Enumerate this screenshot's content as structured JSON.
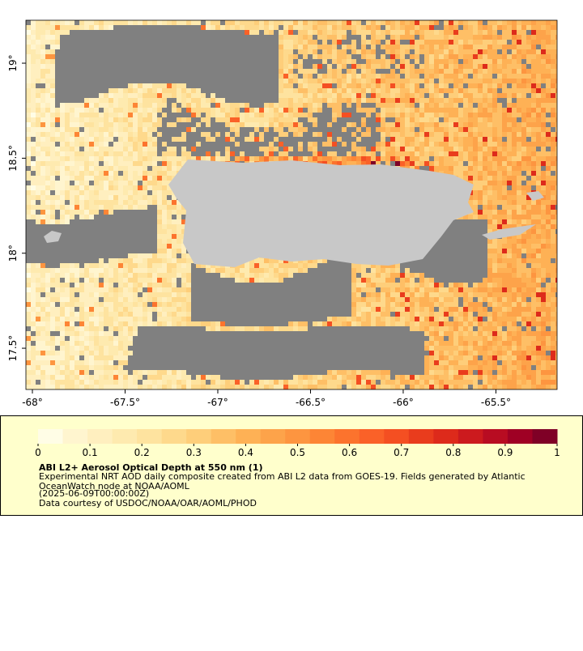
{
  "map": {
    "xlim": [
      -68.035,
      -65.17
    ],
    "ylim": [
      17.283,
      19.226
    ],
    "xticks": [
      {
        "value": -68,
        "label": "-68°"
      },
      {
        "value": -67.5,
        "label": "-67.5°"
      },
      {
        "value": -67,
        "label": "-67°"
      },
      {
        "value": -66.5,
        "label": "-66.5°"
      },
      {
        "value": -66,
        "label": "-66°"
      },
      {
        "value": -65.5,
        "label": "-65.5°"
      }
    ],
    "yticks": [
      {
        "value": 19,
        "label": "19°"
      },
      {
        "value": 18.5,
        "label": "18.5°"
      },
      {
        "value": 18,
        "label": "18°"
      },
      {
        "value": 17.5,
        "label": "17.5°"
      }
    ],
    "no_data_color": "#808080",
    "land_color": "#c8c8c8"
  },
  "colorbar": {
    "lim": [
      0,
      1
    ],
    "ticks": [
      0,
      0.1,
      0.2,
      0.3,
      0.4,
      0.5,
      0.6,
      0.7,
      0.8,
      0.9,
      1
    ],
    "colors": [
      "#fffde6",
      "#fff5cf",
      "#ffefbf",
      "#feeaaf",
      "#fee39f",
      "#fed98c",
      "#fece7a",
      "#febf66",
      "#feb155",
      "#fda34a",
      "#fd9540",
      "#fd8535",
      "#fc732d",
      "#fa6128",
      "#f44f22",
      "#e93c1d",
      "#dd2a1b",
      "#cc1a1e",
      "#b80c22",
      "#9f0024",
      "#7f0026"
    ]
  },
  "info": {
    "title": "ABI L2+ Aerosol Optical Depth at 550 nm (1)",
    "lines": [
      "Experimental NRT AOD daily composite created from ABI L2 data from GOES-19. Fields generated by Atlantic",
      "OceanWatch node at NOAA/AOML",
      "(2025-06-09T00:00:00Z)",
      "Data courtesy of USDOC/NOAA/OAR/AOML/PHOD"
    ]
  }
}
